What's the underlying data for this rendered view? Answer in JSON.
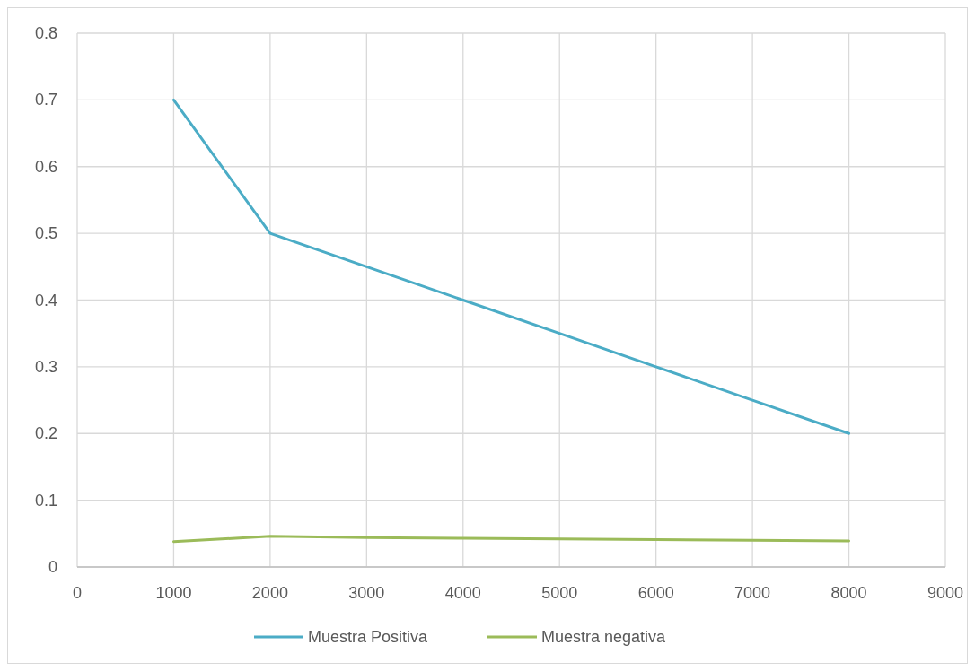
{
  "chart_data": {
    "type": "line",
    "x": [
      1000,
      2000,
      3000,
      4000,
      5000,
      6000,
      7000,
      8000
    ],
    "series": [
      {
        "name": "Muestra Positiva",
        "color": "#4bacc6",
        "values": [
          0.7,
          0.5,
          0.45,
          0.4,
          0.35,
          0.3,
          0.25,
          0.2
        ]
      },
      {
        "name": "Muestra negativa",
        "color": "#9bbb59",
        "values": [
          0.038,
          0.046,
          0.044,
          0.043,
          0.042,
          0.041,
          0.04,
          0.039
        ]
      }
    ],
    "xlim": [
      0,
      9000
    ],
    "xticks": [
      0,
      1000,
      2000,
      3000,
      4000,
      5000,
      6000,
      7000,
      8000,
      9000
    ],
    "ylim": [
      0,
      0.8
    ],
    "yticks": [
      0,
      0.1,
      0.2,
      0.3,
      0.4,
      0.5,
      0.6,
      0.7,
      0.8
    ],
    "grid": true,
    "legend": "bottom",
    "marker": "none",
    "line_style": "solid"
  }
}
